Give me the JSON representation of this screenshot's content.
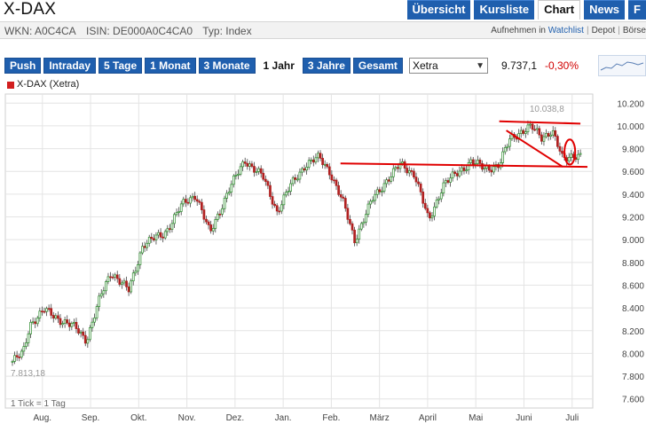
{
  "header": {
    "title": "X-DAX",
    "tabs": [
      {
        "label": "Übersicht",
        "active": false
      },
      {
        "label": "Kursliste",
        "active": false
      },
      {
        "label": "Chart",
        "active": true
      },
      {
        "label": "News",
        "active": false
      },
      {
        "label": "F",
        "active": false
      }
    ]
  },
  "info": {
    "wkn": "WKN: A0C4CA",
    "isin": "ISIN: DE000A0C4CA0",
    "type": "Typ: Index",
    "watchlist_prefix": "Aufnehmen in",
    "watchlist_link": "Watchlist",
    "depot": "Depot",
    "boerse": "Börse"
  },
  "toolbar": {
    "ranges": [
      "Push",
      "Intraday",
      "5 Tage",
      "1 Monat",
      "3 Monate",
      "1 Jahr",
      "3 Jahre",
      "Gesamt"
    ],
    "active_range": "1 Jahr",
    "exchange": "Xetra",
    "price": "9.737,1",
    "change": "-0,30%",
    "change_color": "#d10000",
    "accent": "#1f5fae"
  },
  "chart_data": {
    "type": "candlestick",
    "legend": "X-DAX (Xetra)",
    "legend_color": "#d21f1f",
    "up_color": "#2a8a2a",
    "down_color": "#b02020",
    "annotation_color": "#e00000",
    "y_ticks": [
      "7.600",
      "7.800",
      "8.000",
      "8.200",
      "8.400",
      "8.600",
      "8.800",
      "9.000",
      "9.200",
      "9.400",
      "9.600",
      "9.800",
      "10.000",
      "10.200"
    ],
    "ylim": [
      7520,
      10280
    ],
    "x_ticks": [
      "Aug.",
      "Sep.",
      "Okt.",
      "Nov.",
      "Dez.",
      "Jan.",
      "Feb.",
      "März",
      "April",
      "Mai",
      "Juni",
      "Juli"
    ],
    "high_label": "10.038,8",
    "low_label": "7.813,18",
    "footnote": "1 Tick = 1 Tag",
    "grid": true,
    "anchors": [
      {
        "x": 0,
        "y": 7930
      },
      {
        "x": 0.03,
        "y": 8000
      },
      {
        "x": 0.05,
        "y": 8260
      },
      {
        "x": 0.09,
        "y": 8380
      },
      {
        "x": 0.14,
        "y": 8290
      },
      {
        "x": 0.18,
        "y": 8220
      },
      {
        "x": 0.21,
        "y": 8120
      },
      {
        "x": 0.25,
        "y": 8500
      },
      {
        "x": 0.28,
        "y": 8720
      },
      {
        "x": 0.33,
        "y": 8550
      },
      {
        "x": 0.37,
        "y": 8960
      },
      {
        "x": 0.43,
        "y": 9050
      },
      {
        "x": 0.48,
        "y": 9300
      },
      {
        "x": 0.52,
        "y": 9400
      },
      {
        "x": 0.56,
        "y": 9050
      },
      {
        "x": 0.61,
        "y": 9420
      },
      {
        "x": 0.66,
        "y": 9700
      },
      {
        "x": 0.71,
        "y": 9550
      },
      {
        "x": 0.75,
        "y": 9250
      },
      {
        "x": 0.79,
        "y": 9480
      },
      {
        "x": 0.83,
        "y": 9660
      },
      {
        "x": 0.87,
        "y": 9720
      },
      {
        "x": 0.9,
        "y": 9600
      },
      {
        "x": 0.94,
        "y": 9300
      },
      {
        "x": 0.97,
        "y": 9000
      },
      {
        "x": 1.02,
        "y": 9350
      },
      {
        "x": 1.06,
        "y": 9520
      },
      {
        "x": 1.1,
        "y": 9660
      },
      {
        "x": 1.14,
        "y": 9580
      },
      {
        "x": 1.18,
        "y": 9160
      },
      {
        "x": 1.22,
        "y": 9480
      },
      {
        "x": 1.26,
        "y": 9580
      },
      {
        "x": 1.3,
        "y": 9690
      },
      {
        "x": 1.34,
        "y": 9620
      },
      {
        "x": 1.38,
        "y": 9660
      },
      {
        "x": 1.41,
        "y": 9880
      },
      {
        "x": 1.44,
        "y": 9950
      },
      {
        "x": 1.47,
        "y": 9990
      },
      {
        "x": 1.5,
        "y": 9900
      },
      {
        "x": 1.53,
        "y": 9960
      },
      {
        "x": 1.56,
        "y": 9700
      },
      {
        "x": 1.59,
        "y": 9750
      },
      {
        "x": 1.61,
        "y": 9737
      }
    ],
    "annotations": [
      {
        "type": "line",
        "from": [
          1.38,
          10040
        ],
        "to": [
          1.61,
          10020
        ]
      },
      {
        "type": "line",
        "from": [
          0.93,
          9670
        ],
        "to": [
          1.63,
          9640
        ]
      },
      {
        "type": "line",
        "from": [
          1.4,
          9960
        ],
        "to": [
          1.56,
          9640
        ]
      },
      {
        "type": "ellipse",
        "center": [
          1.58,
          9770
        ],
        "r": [
          0.015,
          110
        ]
      }
    ]
  }
}
